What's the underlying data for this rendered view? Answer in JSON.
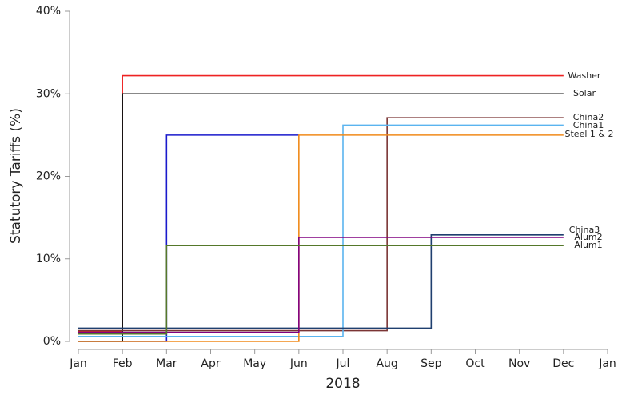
{
  "chart_data": {
    "type": "step-line",
    "xlabel": "2018",
    "ylabel": "Statutory Tariffs (%)",
    "categories": [
      "Jan",
      "Feb",
      "Mar",
      "Apr",
      "May",
      "Jun",
      "Jul",
      "Aug",
      "Sep",
      "Oct",
      "Nov",
      "Dec",
      "Jan"
    ],
    "ylim": [
      0,
      40
    ],
    "yticks": [
      {
        "value": 0,
        "label": "0%"
      },
      {
        "value": 10,
        "label": "10%"
      },
      {
        "value": 20,
        "label": "20%"
      },
      {
        "value": 30,
        "label": "30%"
      },
      {
        "value": 40,
        "label": "40%"
      }
    ],
    "series": [
      {
        "name": "Washer",
        "color": "#ee2222",
        "values": [
          1.2,
          32.2,
          32.2,
          32.2,
          32.2,
          32.2,
          32.2,
          32.2,
          32.2,
          32.2,
          32.2,
          32.2,
          null
        ]
      },
      {
        "name": "Solar",
        "color": "#111111",
        "values": [
          0,
          30,
          30,
          30,
          30,
          30,
          30,
          30,
          30,
          30,
          30,
          30,
          null
        ]
      },
      {
        "color": "#1a1acc",
        "values": [
          0,
          0,
          25,
          25,
          25,
          25,
          null,
          null,
          null,
          null,
          null,
          null,
          null
        ]
      },
      {
        "name": "China2",
        "color": "#7b3535",
        "values": [
          1.3,
          1.3,
          1.3,
          1.3,
          1.3,
          1.3,
          1.3,
          27.1,
          27.1,
          27.1,
          27.1,
          27.1,
          null
        ]
      },
      {
        "name": "China1",
        "color": "#5ab4ef",
        "values": [
          0.6,
          0.6,
          0.6,
          0.6,
          0.6,
          0.6,
          26.2,
          26.2,
          26.2,
          26.2,
          26.2,
          26.2,
          null
        ]
      },
      {
        "name": "Steel 1 & 2",
        "color": "#f08a1a",
        "values": [
          0,
          0,
          0,
          0,
          0,
          25,
          25,
          25,
          25,
          25,
          25,
          25,
          null
        ]
      },
      {
        "name": "China3",
        "color": "#1f3f6f",
        "values": [
          1.6,
          1.6,
          1.6,
          1.6,
          1.6,
          1.6,
          1.6,
          1.6,
          12.9,
          12.9,
          12.9,
          12.9,
          null
        ]
      },
      {
        "name": "Alum2",
        "color": "#800080",
        "values": [
          1.1,
          1.1,
          1.1,
          1.1,
          1.1,
          12.6,
          12.6,
          12.6,
          12.6,
          12.6,
          12.6,
          12.6,
          null
        ]
      },
      {
        "name": "Alum1",
        "color": "#55782a",
        "values": [
          0.9,
          0.9,
          11.6,
          11.6,
          11.6,
          11.6,
          11.6,
          11.6,
          11.6,
          11.6,
          11.6,
          11.6,
          null
        ]
      }
    ]
  }
}
